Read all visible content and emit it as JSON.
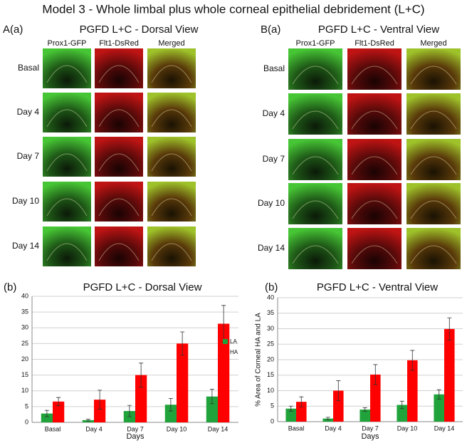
{
  "figure": {
    "title": "Model 3 - Whole limbal plus whole corneal epithelial debridement (L+C)",
    "panels": [
      {
        "label": "A(a)",
        "heading": "PGFD L+C - Dorsal View",
        "columns": [
          "Prox1-GFP",
          "Flt1-DsRed",
          "Merged"
        ],
        "rows": [
          "Basal",
          "Day 4",
          "Day 7",
          "Day 10",
          "Day 14"
        ]
      },
      {
        "label": "B(a)",
        "heading": "PGFD L+C - Ventral View",
        "columns": [
          "Prox1-GFP",
          "Flt1-DsRed",
          "Merged"
        ],
        "rows": [
          "Basal",
          "Day 4",
          "Day 7",
          "Day 10",
          "Day 14"
        ]
      }
    ]
  },
  "chart_data": [
    {
      "type": "bar",
      "panel_label": "(b)",
      "title": "PGFD L+C - Dorsal View",
      "x_label": "Days",
      "categories": [
        "Basal",
        "Day 4",
        "Day 7",
        "Day 10",
        "Day 14"
      ],
      "series": [
        {
          "name": "LA",
          "color": "#1fa33a",
          "values": [
            2.8,
            0.7,
            3.6,
            5.6,
            8.2
          ],
          "errors": [
            1.0,
            0.3,
            1.8,
            2.0,
            2.3
          ]
        },
        {
          "name": "HA",
          "color": "#ff0000",
          "values": [
            6.6,
            7.2,
            15.0,
            25.0,
            31.3
          ],
          "errors": [
            1.3,
            3.0,
            3.8,
            3.7,
            5.8
          ]
        }
      ],
      "ylim": [
        0,
        40
      ],
      "yticks": [
        0,
        5,
        10,
        15,
        20,
        25,
        30,
        35,
        40
      ],
      "grid": true,
      "legend": "right"
    },
    {
      "type": "bar",
      "panel_label": "(b)",
      "title": "PGFD L+C - Ventral View",
      "x_label": "Days",
      "y_label": "% Area of Corneal HA and LA",
      "categories": [
        "Basal",
        "Day 4",
        "Day 7",
        "Day 10",
        "Day 14"
      ],
      "series": [
        {
          "color": "#1fa33a",
          "values": [
            4.2,
            1.0,
            3.9,
            5.4,
            8.8
          ],
          "errors": [
            0.8,
            0.4,
            0.6,
            1.2,
            1.5
          ]
        },
        {
          "color": "#ff0000",
          "values": [
            6.4,
            10.0,
            15.2,
            19.8,
            29.9
          ],
          "errors": [
            1.6,
            3.2,
            3.2,
            3.2,
            3.6
          ]
        }
      ],
      "ylim": [
        0,
        40
      ],
      "yticks": [
        0,
        5,
        10,
        15,
        20,
        25,
        30,
        35,
        40
      ],
      "grid": true
    }
  ]
}
